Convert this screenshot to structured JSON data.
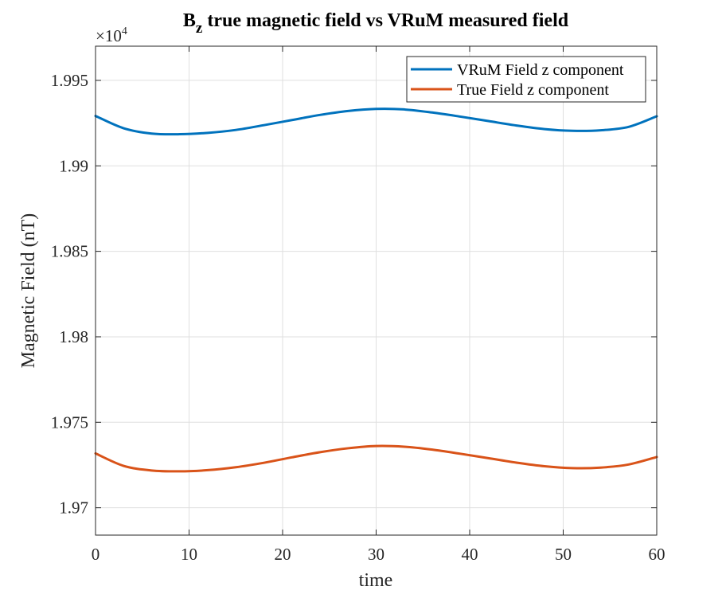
{
  "chart_data": {
    "type": "line",
    "title": {
      "main": "B",
      "subscript": "z",
      "rest": "true magnetic field vs VRuM measured field"
    },
    "xlabel": "time",
    "ylabel": "Magnetic Field (nT)",
    "exponent_label": {
      "prefix": "×10",
      "power": "4"
    },
    "xlim": [
      0,
      60
    ],
    "ylim": [
      1.9684,
      1.997
    ],
    "xticks": [
      0,
      10,
      20,
      30,
      40,
      50,
      60
    ],
    "xtick_labels": [
      "0",
      "10",
      "20",
      "30",
      "40",
      "50",
      "60"
    ],
    "yticks": [
      1.97,
      1.975,
      1.98,
      1.985,
      1.99,
      1.995
    ],
    "ytick_labels": [
      "1.97",
      "1.975",
      "1.98",
      "1.985",
      "1.99",
      "1.995"
    ],
    "grid": true,
    "legend_position": "top-right",
    "series": [
      {
        "name": "VRuM Field z component",
        "color": "#0072BD",
        "x": [
          0,
          3,
          6,
          9,
          12,
          15,
          18,
          21,
          24,
          27,
          30,
          33,
          36,
          39,
          42,
          45,
          48,
          51,
          54,
          57,
          60
        ],
        "y": [
          1.99292,
          1.9922,
          1.99189,
          1.99185,
          1.99193,
          1.9921,
          1.99238,
          1.99268,
          1.99298,
          1.99321,
          1.99333,
          1.9933,
          1.99312,
          1.99288,
          1.99262,
          1.99236,
          1.99215,
          1.99205,
          1.99208,
          1.99228,
          1.9929
        ]
      },
      {
        "name": "True Field z component",
        "color": "#D95319",
        "x": [
          0,
          3,
          6,
          9,
          12,
          15,
          18,
          21,
          24,
          27,
          30,
          33,
          36,
          39,
          42,
          45,
          48,
          51,
          54,
          57,
          60
        ],
        "y": [
          1.97318,
          1.97245,
          1.97218,
          1.97213,
          1.9722,
          1.97237,
          1.97263,
          1.97295,
          1.97325,
          1.97348,
          1.97361,
          1.97357,
          1.9734,
          1.97316,
          1.9729,
          1.97264,
          1.97243,
          1.97232,
          1.97235,
          1.97253,
          1.97297
        ]
      }
    ]
  }
}
